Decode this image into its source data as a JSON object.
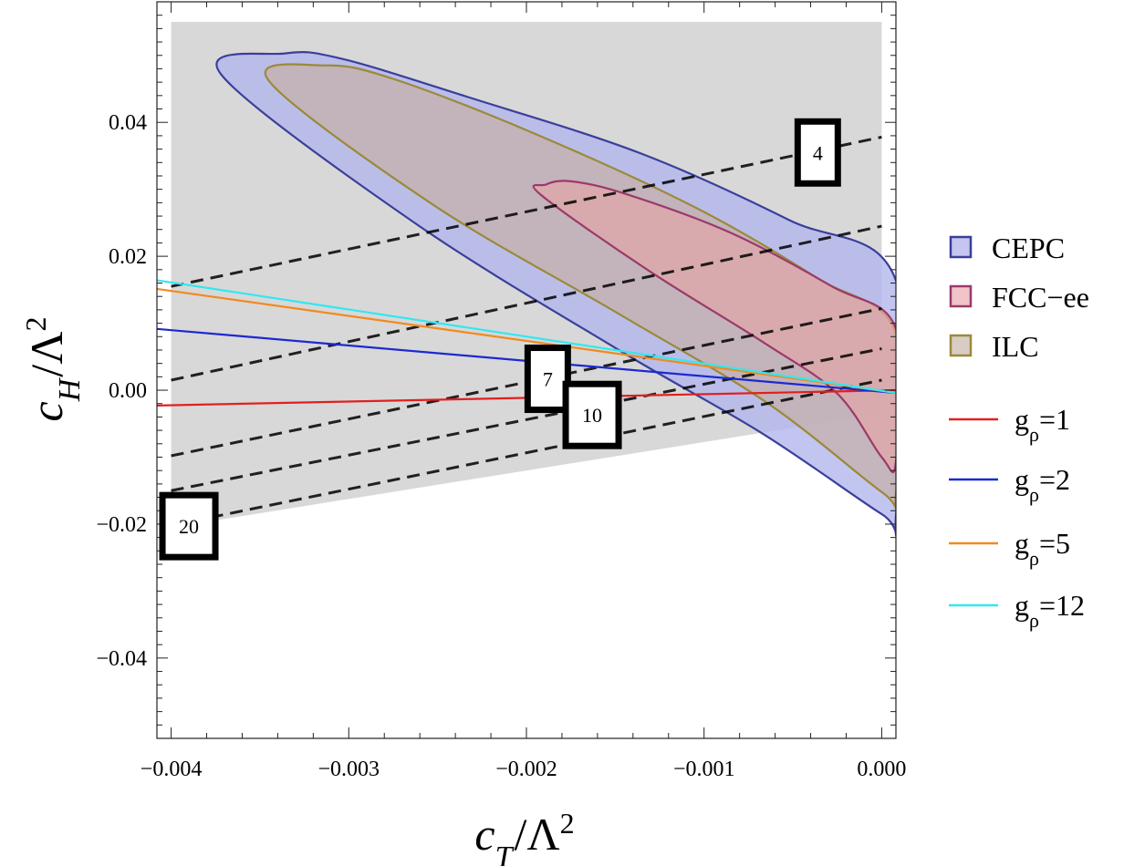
{
  "chart_data": {
    "type": "contour-region",
    "xlabel": "c_T/Λ^2",
    "ylabel": "c_H/Λ^2",
    "xlabel_parts": {
      "base": "c",
      "sub": "T",
      "rest": "/Λ",
      "sup": "2"
    },
    "ylabel_parts": {
      "base": "c",
      "sub": "H",
      "rest": "/Λ",
      "sup": "2"
    },
    "xlim": [
      -0.00408,
      8e-05
    ],
    "ylim": [
      -0.052,
      0.058
    ],
    "xticks": [
      -0.004,
      -0.003,
      -0.002,
      -0.001,
      0.0
    ],
    "xtick_labels": [
      "−0.004",
      "−0.003",
      "−0.002",
      "−0.001",
      "0.000"
    ],
    "yticks": [
      -0.04,
      -0.02,
      0.0,
      0.02,
      0.04
    ],
    "ytick_labels": [
      "−0.04",
      "−0.02",
      "0.00",
      "0.02",
      "0.04"
    ],
    "allowed_region": {
      "color": "#d8d8d8",
      "polygon": [
        [
          -0.004,
          0.055
        ],
        [
          0.0,
          0.055
        ],
        [
          0.0,
          -0.0035
        ],
        [
          -0.004,
          -0.0205
        ]
      ]
    },
    "ellipses": [
      {
        "name": "CEPC",
        "fill": "#b4b6ee",
        "stroke": "#3a3f9a",
        "opacity": 0.8,
        "points": [
          [
            -0.00336,
            0.0503
          ],
          [
            -0.00372,
            0.0472
          ],
          [
            -0.00263,
            0.025
          ],
          [
            -0.00148,
            0.006
          ],
          [
            -0.00067,
            -0.0065
          ],
          [
            0.0,
            -0.0185
          ],
          [
            8e-05,
            -0.0188
          ],
          [
            8e-05,
            0.0164
          ],
          [
            -0.00052,
            0.0254
          ],
          [
            -0.00136,
            0.0354
          ],
          [
            -0.00232,
            0.0437
          ],
          [
            -0.00304,
            0.0495
          ]
        ]
      },
      {
        "name": "ILC",
        "fill": "#c6aea8",
        "stroke": "#9a8a38",
        "opacity": 0.72,
        "points": [
          [
            -0.00313,
            0.0485
          ],
          [
            -0.00345,
            0.0462
          ],
          [
            -0.00252,
            0.0276
          ],
          [
            -0.00148,
            0.0114
          ],
          [
            -0.00065,
            -0.0018
          ],
          [
            0.0,
            -0.0152
          ],
          [
            8e-05,
            -0.0155
          ],
          [
            8e-05,
            0.0085
          ],
          [
            -0.00036,
            0.0167
          ],
          [
            -0.00105,
            0.0273
          ],
          [
            -0.00197,
            0.0385
          ],
          [
            -0.00275,
            0.0465
          ]
        ]
      },
      {
        "name": "FCC-ee",
        "fill": "#e4a6a6",
        "stroke": "#9c3a6a",
        "opacity": 0.65,
        "points": [
          [
            -0.00189,
            0.0307
          ],
          [
            -0.00192,
            0.0292
          ],
          [
            -0.00132,
            0.018
          ],
          [
            -0.00067,
            0.0072
          ],
          [
            -0.00025,
            -0.0005
          ],
          [
            0.0,
            -0.01
          ],
          [
            8e-05,
            -0.0106
          ],
          [
            8e-05,
            0.0092
          ],
          [
            -0.00028,
            0.0155
          ],
          [
            -0.00085,
            0.0235
          ],
          [
            -0.00144,
            0.0293
          ],
          [
            -0.00175,
            0.0312
          ]
        ]
      }
    ],
    "dashed_lines": [
      {
        "label": "4",
        "x": [
          -0.004,
          0.0
        ],
        "y": [
          0.0155,
          0.0378
        ]
      },
      {
        "label": "",
        "x": [
          -0.004,
          0.0
        ],
        "y": [
          0.0015,
          0.0245
        ]
      },
      {
        "label": "7",
        "x": [
          -0.004,
          0.0
        ],
        "y": [
          -0.0098,
          0.0122
        ]
      },
      {
        "label": "10",
        "x": [
          -0.004,
          0.0
        ],
        "y": [
          -0.015,
          0.0062
        ]
      },
      {
        "label": "20",
        "x": [
          -0.004,
          0.0
        ],
        "y": [
          -0.0202,
          0.0015
        ]
      }
    ],
    "contour_labels": [
      {
        "text": "4",
        "x": -0.00036,
        "y": 0.0355
      },
      {
        "text": "7",
        "x": -0.00188,
        "y": 0.0017
      },
      {
        "text": "10",
        "x": -0.00163,
        "y": -0.0037
      },
      {
        "text": "20",
        "x": -0.0039,
        "y": -0.0203
      }
    ],
    "series": [
      {
        "name": "gρ=1",
        "color": "#e02020",
        "x": [
          -0.0041,
          8e-05
        ],
        "y": [
          -0.0023,
          0.0
        ]
      },
      {
        "name": "gρ=2",
        "color": "#1a2ad0",
        "x": [
          -0.0041,
          8e-05
        ],
        "y": [
          0.0092,
          -0.0004
        ]
      },
      {
        "name": "gρ=5",
        "color": "#f08a20",
        "x": [
          -0.0041,
          8e-05
        ],
        "y": [
          0.0152,
          -0.0004
        ]
      },
      {
        "name": "gρ=12",
        "color": "#30e8f0",
        "x": [
          -0.0041,
          8e-05
        ],
        "y": [
          0.0165,
          -0.0004
        ]
      }
    ],
    "legend": {
      "position": "right",
      "regions": [
        {
          "label": "CEPC",
          "fill": "#c4c6f0",
          "stroke": "#3a3f9a"
        },
        {
          "label": "FCC−ee",
          "fill": "#f0c4c8",
          "stroke": "#9c3a6a"
        },
        {
          "label": "ILC",
          "fill": "#d8ccc4",
          "stroke": "#9a8a38"
        }
      ],
      "lines": [
        {
          "base": "g",
          "sub": "ρ",
          "value": "=1",
          "color": "#e02020"
        },
        {
          "base": "g",
          "sub": "ρ",
          "value": "=2",
          "color": "#1a2ad0"
        },
        {
          "base": "g",
          "sub": "ρ",
          "value": "=5",
          "color": "#f08a20"
        },
        {
          "base": "g",
          "sub": "ρ",
          "value": "=12",
          "color": "#30e8f0"
        }
      ]
    }
  }
}
